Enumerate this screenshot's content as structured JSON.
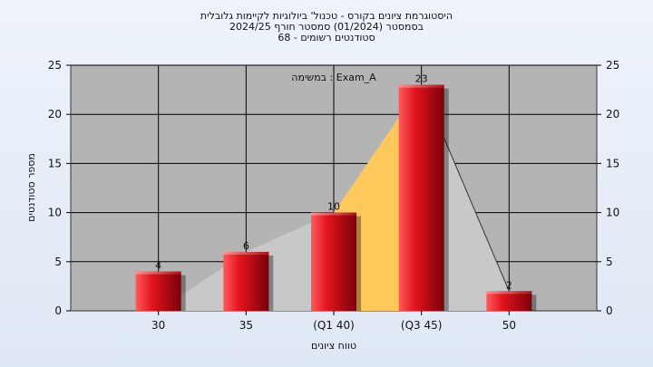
{
  "chart_data": {
    "type": "bar",
    "title_lines": [
      "היסטוגרמת ציונים בקורס - טכנול' ביולוגיות לקיימות גלובלית",
      "בסמסטר  (01/2024)  סמסטר חורף 2024/25",
      "סטודנטים רשומים - 68"
    ],
    "task_label": "במשימה : Exam_A",
    "xlabel": "טווח ציונים",
    "ylabel": "מספר סטודנטים",
    "categories": [
      "30",
      "35",
      "(Q1 40)",
      "(Q3 45)",
      "50"
    ],
    "values": [
      4,
      6,
      10,
      23,
      2
    ],
    "ylim": [
      0,
      25
    ],
    "yticks": [
      0,
      5,
      10,
      15,
      20,
      25
    ],
    "grid": true,
    "colors": {
      "bar": "#e0212b",
      "plot_bg": "#b4b4b4",
      "area_gray": "#c8c8c8",
      "area_highlight": "#ffc85a"
    }
  }
}
